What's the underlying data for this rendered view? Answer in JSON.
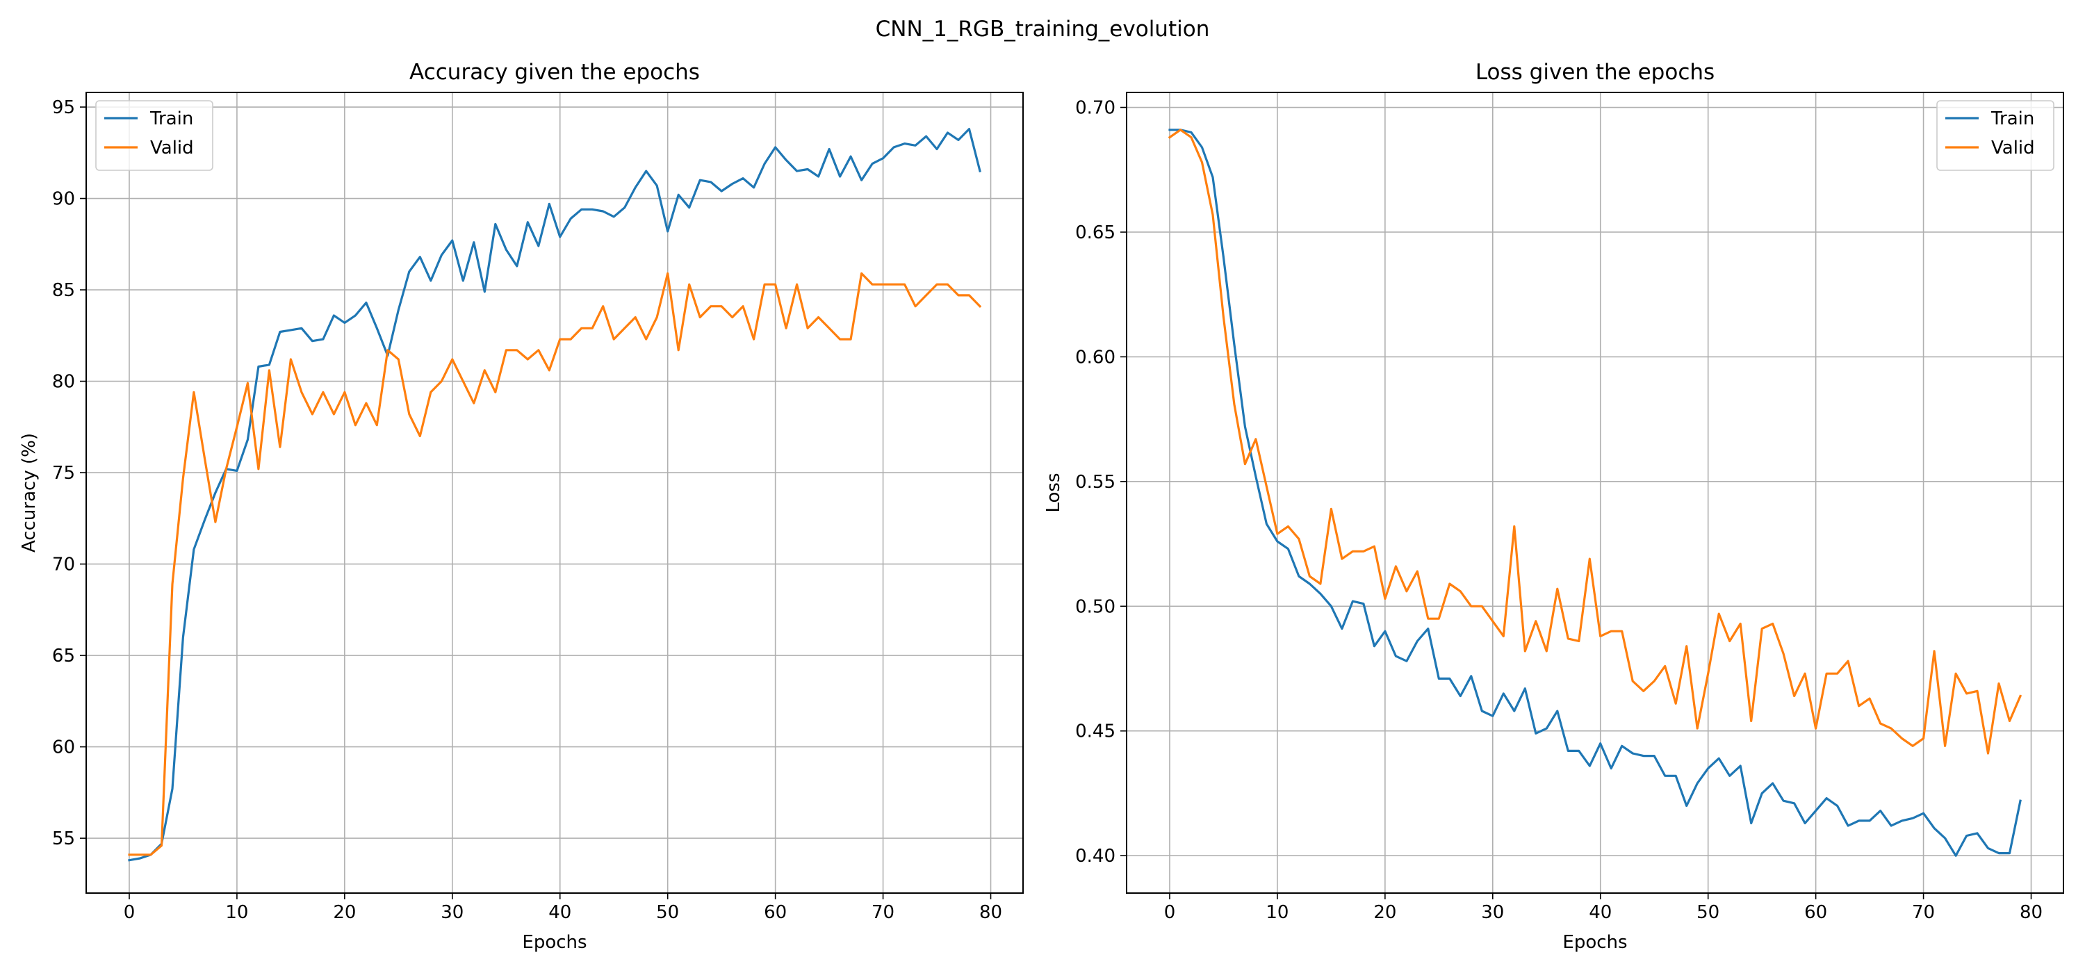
{
  "suptitle": "CNN_1_RGB_training_evolution",
  "colors": {
    "train": "#1f77b4",
    "valid": "#ff7f0e",
    "grid": "#b0b0b0",
    "axes": "#000000"
  },
  "chart_data": [
    {
      "type": "line",
      "title": "Accuracy given the epochs",
      "xlabel": "Epochs",
      "ylabel": "Accuracy (%)",
      "xlim": [
        -4,
        83
      ],
      "ylim": [
        52,
        95.8
      ],
      "xticks": [
        0,
        10,
        20,
        30,
        40,
        50,
        60,
        70,
        80
      ],
      "yticks": [
        55,
        60,
        65,
        70,
        75,
        80,
        85,
        90,
        95
      ],
      "grid": true,
      "legend": "upper left",
      "series": [
        {
          "name": "Train",
          "color": "#1f77b4",
          "x": [
            0,
            1,
            2,
            3,
            4,
            5,
            6,
            7,
            8,
            9,
            10,
            11,
            12,
            13,
            14,
            15,
            16,
            17,
            18,
            19,
            20,
            21,
            22,
            23,
            24,
            25,
            26,
            27,
            28,
            29,
            30,
            31,
            32,
            33,
            34,
            35,
            36,
            37,
            38,
            39,
            40,
            41,
            42,
            43,
            44,
            45,
            46,
            47,
            48,
            49,
            50,
            51,
            52,
            53,
            54,
            55,
            56,
            57,
            58,
            59,
            60,
            61,
            62,
            63,
            64,
            65,
            66,
            67,
            68,
            69,
            70,
            71,
            72,
            73,
            74,
            75,
            76,
            77,
            78,
            79
          ],
          "values": [
            53.8,
            53.9,
            54.1,
            54.7,
            57.7,
            66.0,
            70.8,
            72.4,
            73.9,
            75.2,
            75.1,
            76.8,
            80.8,
            80.9,
            82.7,
            82.8,
            82.9,
            82.2,
            82.3,
            83.6,
            83.2,
            83.6,
            84.3,
            82.9,
            81.4,
            83.9,
            86.0,
            86.8,
            85.5,
            86.9,
            87.7,
            85.5,
            87.6,
            84.9,
            88.6,
            87.2,
            86.3,
            88.7,
            87.4,
            89.7,
            87.9,
            88.9,
            89.4,
            89.4,
            89.3,
            89.0,
            89.5,
            90.6,
            91.5,
            90.7,
            88.2,
            90.2,
            89.5,
            91.0,
            90.9,
            90.4,
            90.8,
            91.1,
            90.6,
            91.9,
            92.8,
            92.1,
            91.5,
            91.6,
            91.2,
            92.7,
            91.2,
            92.3,
            91.0,
            91.9,
            92.2,
            92.8,
            93.0,
            92.9,
            93.4,
            92.7,
            93.6,
            93.2,
            93.8,
            91.5
          ]
        },
        {
          "name": "Valid",
          "color": "#ff7f0e",
          "x": [
            0,
            1,
            2,
            3,
            4,
            5,
            6,
            7,
            8,
            9,
            10,
            11,
            12,
            13,
            14,
            15,
            16,
            17,
            18,
            19,
            20,
            21,
            22,
            23,
            24,
            25,
            26,
            27,
            28,
            29,
            30,
            31,
            32,
            33,
            34,
            35,
            36,
            37,
            38,
            39,
            40,
            41,
            42,
            43,
            44,
            45,
            46,
            47,
            48,
            49,
            50,
            51,
            52,
            53,
            54,
            55,
            56,
            57,
            58,
            59,
            60,
            61,
            62,
            63,
            64,
            65,
            66,
            67,
            68,
            69,
            70,
            71,
            72,
            73,
            74,
            75,
            76,
            77,
            78,
            79
          ],
          "values": [
            54.1,
            54.1,
            54.1,
            54.6,
            68.9,
            74.7,
            79.4,
            75.8,
            72.3,
            75.2,
            77.5,
            79.9,
            75.2,
            80.6,
            76.4,
            81.2,
            79.4,
            78.2,
            79.4,
            78.2,
            79.4,
            77.6,
            78.8,
            77.6,
            81.7,
            81.2,
            78.2,
            77.0,
            79.4,
            80.0,
            81.2,
            80.0,
            78.8,
            80.6,
            79.4,
            81.7,
            81.7,
            81.2,
            81.7,
            80.6,
            82.3,
            82.3,
            82.9,
            82.9,
            84.1,
            82.3,
            82.9,
            83.5,
            82.3,
            83.5,
            85.9,
            81.7,
            85.3,
            83.5,
            84.1,
            84.1,
            83.5,
            84.1,
            82.3,
            85.3,
            85.3,
            82.9,
            85.3,
            82.9,
            83.5,
            82.9,
            82.3,
            82.3,
            85.9,
            85.3,
            85.3,
            85.3,
            85.3,
            84.1,
            84.7,
            85.3,
            85.3,
            84.7,
            84.7,
            84.1
          ]
        }
      ]
    },
    {
      "type": "line",
      "title": "Loss given the epochs",
      "xlabel": "Epochs",
      "ylabel": "Loss",
      "xlim": [
        -4,
        83
      ],
      "ylim": [
        0.385,
        0.706
      ],
      "xticks": [
        0,
        10,
        20,
        30,
        40,
        50,
        60,
        70,
        80
      ],
      "yticks": [
        0.4,
        0.45,
        0.5,
        0.55,
        0.6,
        0.65,
        0.7
      ],
      "ytick_labels": [
        "0.40",
        "0.45",
        "0.50",
        "0.55",
        "0.60",
        "0.65",
        "0.70"
      ],
      "grid": true,
      "legend": "upper right",
      "series": [
        {
          "name": "Train",
          "color": "#1f77b4",
          "x": [
            0,
            1,
            2,
            3,
            4,
            5,
            6,
            7,
            8,
            9,
            10,
            11,
            12,
            13,
            14,
            15,
            16,
            17,
            18,
            19,
            20,
            21,
            22,
            23,
            24,
            25,
            26,
            27,
            28,
            29,
            30,
            31,
            32,
            33,
            34,
            35,
            36,
            37,
            38,
            39,
            40,
            41,
            42,
            43,
            44,
            45,
            46,
            47,
            48,
            49,
            50,
            51,
            52,
            53,
            54,
            55,
            56,
            57,
            58,
            59,
            60,
            61,
            62,
            63,
            64,
            65,
            66,
            67,
            68,
            69,
            70,
            71,
            72,
            73,
            74,
            75,
            76,
            77,
            78,
            79
          ],
          "values": [
            0.691,
            0.691,
            0.69,
            0.684,
            0.672,
            0.64,
            0.605,
            0.572,
            0.552,
            0.533,
            0.526,
            0.523,
            0.512,
            0.509,
            0.505,
            0.5,
            0.491,
            0.502,
            0.501,
            0.484,
            0.49,
            0.48,
            0.478,
            0.486,
            0.491,
            0.471,
            0.471,
            0.464,
            0.472,
            0.458,
            0.456,
            0.465,
            0.458,
            0.467,
            0.449,
            0.451,
            0.458,
            0.442,
            0.442,
            0.436,
            0.445,
            0.435,
            0.444,
            0.441,
            0.44,
            0.44,
            0.432,
            0.432,
            0.42,
            0.429,
            0.435,
            0.439,
            0.432,
            0.436,
            0.413,
            0.425,
            0.429,
            0.422,
            0.421,
            0.413,
            0.418,
            0.423,
            0.42,
            0.412,
            0.414,
            0.414,
            0.418,
            0.412,
            0.414,
            0.415,
            0.417,
            0.411,
            0.407,
            0.4,
            0.408,
            0.409,
            0.403,
            0.401,
            0.401,
            0.422
          ]
        },
        {
          "name": "Valid",
          "color": "#ff7f0e",
          "x": [
            0,
            1,
            2,
            3,
            4,
            5,
            6,
            7,
            8,
            9,
            10,
            11,
            12,
            13,
            14,
            15,
            16,
            17,
            18,
            19,
            20,
            21,
            22,
            23,
            24,
            25,
            26,
            27,
            28,
            29,
            30,
            31,
            32,
            33,
            34,
            35,
            36,
            37,
            38,
            39,
            40,
            41,
            42,
            43,
            44,
            45,
            46,
            47,
            48,
            49,
            50,
            51,
            52,
            53,
            54,
            55,
            56,
            57,
            58,
            59,
            60,
            61,
            62,
            63,
            64,
            65,
            66,
            67,
            68,
            69,
            70,
            71,
            72,
            73,
            74,
            75,
            76,
            77,
            78,
            79
          ],
          "values": [
            0.688,
            0.691,
            0.688,
            0.678,
            0.657,
            0.616,
            0.581,
            0.557,
            0.567,
            0.548,
            0.529,
            0.532,
            0.527,
            0.512,
            0.509,
            0.539,
            0.519,
            0.522,
            0.522,
            0.524,
            0.503,
            0.516,
            0.506,
            0.514,
            0.495,
            0.495,
            0.509,
            0.506,
            0.5,
            0.5,
            0.494,
            0.488,
            0.532,
            0.482,
            0.494,
            0.482,
            0.507,
            0.487,
            0.486,
            0.519,
            0.488,
            0.49,
            0.49,
            0.47,
            0.466,
            0.47,
            0.476,
            0.461,
            0.484,
            0.451,
            0.473,
            0.497,
            0.486,
            0.493,
            0.454,
            0.491,
            0.493,
            0.481,
            0.464,
            0.473,
            0.451,
            0.473,
            0.473,
            0.478,
            0.46,
            0.463,
            0.453,
            0.451,
            0.447,
            0.444,
            0.447,
            0.482,
            0.444,
            0.473,
            0.465,
            0.466,
            0.441,
            0.469,
            0.454,
            0.464
          ]
        }
      ]
    }
  ]
}
